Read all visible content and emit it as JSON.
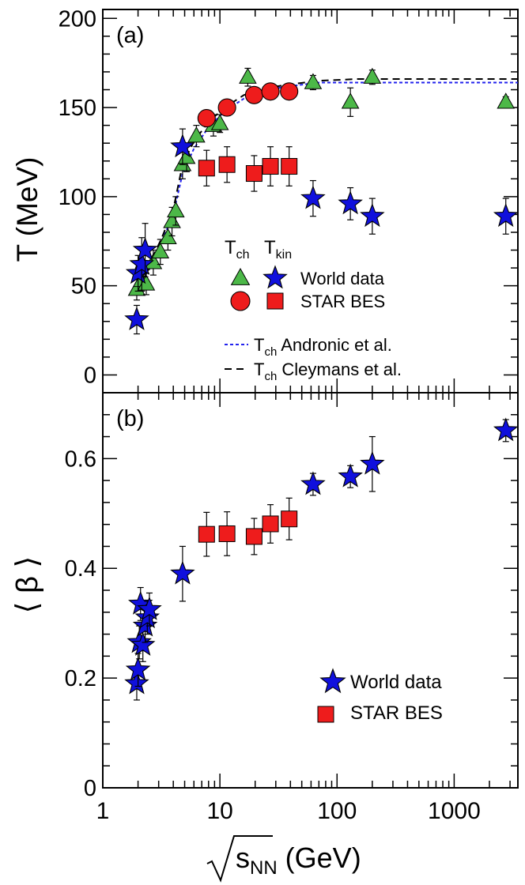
{
  "chart_data": [
    {
      "type": "scatter",
      "panel_label": "(a)",
      "ylabel": "T (MeV)",
      "xscale": "log",
      "xlim": [
        1,
        3500
      ],
      "ylim": [
        -10,
        205
      ],
      "yticks": [
        "0",
        "50",
        "100",
        "150",
        "200"
      ],
      "ytick_values": [
        0,
        50,
        100,
        150,
        200
      ],
      "legend_headers": {
        "tch": "ch",
        "tkin": "kin",
        "T": "T"
      },
      "legend_rows": [
        "World data",
        "STAR BES"
      ],
      "line_legend": [
        {
          "prefix": "T",
          "sub": "ch",
          "text": " Andronic et al."
        },
        {
          "prefix": "T",
          "sub": "ch",
          "text": " Cleymans et al."
        }
      ],
      "series": [
        {
          "name": "Tch World data",
          "marker": "triangle",
          "color": "#4cb848",
          "points": [
            {
              "x": 1.95,
              "y": 48,
              "err": 6
            },
            {
              "x": 2.15,
              "y": 53,
              "err": 6
            },
            {
              "x": 2.35,
              "y": 51,
              "err": 6
            },
            {
              "x": 2.7,
              "y": 63,
              "err": 7
            },
            {
              "x": 3.1,
              "y": 69,
              "err": 7
            },
            {
              "x": 3.6,
              "y": 77,
              "err": 7
            },
            {
              "x": 3.9,
              "y": 86,
              "err": 8
            },
            {
              "x": 4.2,
              "y": 92,
              "err": 8
            },
            {
              "x": 4.8,
              "y": 118,
              "err": 8
            },
            {
              "x": 5.2,
              "y": 122,
              "err": 8
            },
            {
              "x": 6.3,
              "y": 134,
              "err": 6
            },
            {
              "x": 8.8,
              "y": 140,
              "err": 6
            },
            {
              "x": 10.0,
              "y": 141,
              "err": 5
            },
            {
              "x": 17.3,
              "y": 167,
              "err": 5
            },
            {
              "x": 62.4,
              "y": 164,
              "err": 4
            },
            {
              "x": 130,
              "y": 153,
              "err": 8
            },
            {
              "x": 200,
              "y": 167,
              "err": 4
            },
            {
              "x": 2760,
              "y": 153,
              "err": 3
            }
          ]
        },
        {
          "name": "Tkin World data",
          "marker": "star",
          "color": "#1010dd",
          "points": [
            {
              "x": 1.95,
              "y": 31,
              "err": 8
            },
            {
              "x": 2.0,
              "y": 57,
              "err": 10
            },
            {
              "x": 2.15,
              "y": 62,
              "err": 15
            },
            {
              "x": 2.3,
              "y": 70,
              "err": 15
            },
            {
              "x": 4.8,
              "y": 128,
              "err": 10
            },
            {
              "x": 62.4,
              "y": 99,
              "err": 10
            },
            {
              "x": 130,
              "y": 96,
              "err": 9
            },
            {
              "x": 200,
              "y": 89,
              "err": 10
            },
            {
              "x": 2760,
              "y": 89,
              "err": 10
            }
          ]
        },
        {
          "name": "Tch STAR BES",
          "marker": "circle",
          "color": "#ee1c1c",
          "points": [
            {
              "x": 7.7,
              "y": 144,
              "err": 0
            },
            {
              "x": 11.5,
              "y": 150,
              "err": 0
            },
            {
              "x": 19.6,
              "y": 157,
              "err": 0
            },
            {
              "x": 27,
              "y": 159,
              "err": 0
            },
            {
              "x": 39,
              "y": 159,
              "err": 0
            }
          ]
        },
        {
          "name": "Tkin STAR BES",
          "marker": "square",
          "color": "#ee1c1c",
          "points": [
            {
              "x": 7.7,
              "y": 116,
              "err": 10
            },
            {
              "x": 11.5,
              "y": 118,
              "err": 10
            },
            {
              "x": 19.6,
              "y": 113,
              "err": 10
            },
            {
              "x": 27,
              "y": 117,
              "err": 11
            },
            {
              "x": 39,
              "y": 117,
              "err": 11
            }
          ]
        }
      ],
      "curves": [
        {
          "name": "Andronic et al.",
          "style": "dotted",
          "color": "#2222ee",
          "points": [
            [
              1.9,
              45
            ],
            [
              2.5,
              60
            ],
            [
              3.2,
              75
            ],
            [
              4.0,
              90
            ],
            [
              4.8,
              113
            ],
            [
              6,
              127
            ],
            [
              8,
              139
            ],
            [
              11,
              148
            ],
            [
              16,
              155
            ],
            [
              25,
              160
            ],
            [
              40,
              162
            ],
            [
              70,
              164
            ],
            [
              150,
              164
            ],
            [
              400,
              164
            ],
            [
              3500,
              164
            ]
          ]
        },
        {
          "name": "Cleymans et al.",
          "style": "dashed",
          "color": "#000000",
          "points": [
            [
              1.9,
              48
            ],
            [
              2.5,
              62
            ],
            [
              3.2,
              77
            ],
            [
              4.0,
              93
            ],
            [
              4.8,
              118
            ],
            [
              6,
              131
            ],
            [
              8,
              142
            ],
            [
              11,
              150
            ],
            [
              16,
              157
            ],
            [
              25,
              161
            ],
            [
              40,
              163
            ],
            [
              70,
              165
            ],
            [
              150,
              166
            ],
            [
              400,
              166
            ],
            [
              3500,
              166
            ]
          ]
        }
      ]
    },
    {
      "type": "scatter",
      "panel_label": "(b)",
      "ylabel": "⟨ β ⟩",
      "xlabel_root": "s",
      "xlabel_sub": "NN",
      "xlabel_unit": " (GeV)",
      "xscale": "log",
      "xlim": [
        1,
        3500
      ],
      "ylim": [
        0,
        0.72
      ],
      "yticks": [
        "0",
        "0.2",
        "0.4",
        "0.6"
      ],
      "ytick_values": [
        0,
        0.2,
        0.4,
        0.6
      ],
      "xticks": [
        "1",
        "10",
        "100",
        "1000"
      ],
      "xtick_values": [
        1,
        10,
        100,
        1000
      ],
      "legend_rows": [
        "World data",
        "STAR BES"
      ],
      "series": [
        {
          "name": "World data",
          "marker": "star",
          "color": "#1010dd",
          "points": [
            {
              "x": 1.95,
              "y": 0.19,
              "err": 0.03
            },
            {
              "x": 2.0,
              "y": 0.215,
              "err": 0.03
            },
            {
              "x": 2.05,
              "y": 0.265,
              "err": 0.03
            },
            {
              "x": 2.1,
              "y": 0.335,
              "err": 0.03
            },
            {
              "x": 2.2,
              "y": 0.26,
              "err": 0.03
            },
            {
              "x": 2.3,
              "y": 0.295,
              "err": 0.03
            },
            {
              "x": 2.4,
              "y": 0.31,
              "err": 0.03
            },
            {
              "x": 2.5,
              "y": 0.325,
              "err": 0.03
            },
            {
              "x": 4.8,
              "y": 0.39,
              "err": 0.05
            },
            {
              "x": 62.4,
              "y": 0.553,
              "err": 0.02
            },
            {
              "x": 130,
              "y": 0.567,
              "err": 0.02
            },
            {
              "x": 200,
              "y": 0.59,
              "err": 0.05
            },
            {
              "x": 2760,
              "y": 0.651,
              "err": 0.02
            }
          ]
        },
        {
          "name": "STAR BES",
          "marker": "square",
          "color": "#ee1c1c",
          "points": [
            {
              "x": 7.7,
              "y": 0.462,
              "err": 0.04
            },
            {
              "x": 11.5,
              "y": 0.463,
              "err": 0.04
            },
            {
              "x": 19.6,
              "y": 0.458,
              "err": 0.033
            },
            {
              "x": 27,
              "y": 0.481,
              "err": 0.035
            },
            {
              "x": 39,
              "y": 0.49,
              "err": 0.038
            }
          ]
        }
      ]
    }
  ]
}
